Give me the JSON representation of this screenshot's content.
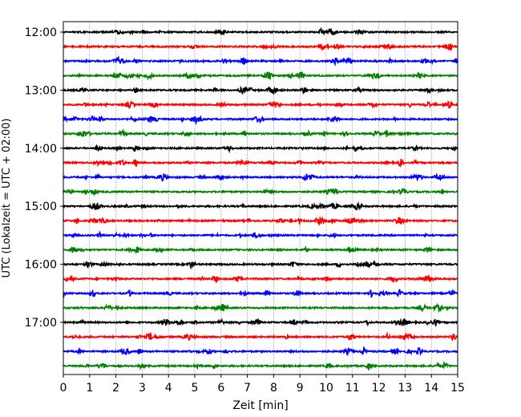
{
  "chart_data": {
    "type": "line",
    "title": "",
    "xlabel": "Zeit  [min]",
    "ylabel": "UTC (Lokalzeit = UTC + 02:00)",
    "xlim": [
      0,
      15
    ],
    "x_ticks": [
      "0",
      "1",
      "2",
      "3",
      "4",
      "5",
      "6",
      "7",
      "8",
      "9",
      "10",
      "11",
      "12",
      "13",
      "14",
      "15"
    ],
    "y_ticks": [
      "12:00",
      "13:00",
      "14:00",
      "15:00",
      "16:00",
      "17:00"
    ],
    "grid": "vertical dotted",
    "trace_interval_minutes": 15,
    "trace_colors": [
      "#000000",
      "#ff0000",
      "#0000ff",
      "#008000"
    ],
    "series": [
      {
        "start": "12:00",
        "color": "#000000"
      },
      {
        "start": "12:15",
        "color": "#ff0000"
      },
      {
        "start": "12:30",
        "color": "#0000ff"
      },
      {
        "start": "12:45",
        "color": "#008000"
      },
      {
        "start": "13:00",
        "color": "#000000"
      },
      {
        "start": "13:15",
        "color": "#ff0000"
      },
      {
        "start": "13:30",
        "color": "#0000ff"
      },
      {
        "start": "13:45",
        "color": "#008000"
      },
      {
        "start": "14:00",
        "color": "#000000"
      },
      {
        "start": "14:15",
        "color": "#ff0000"
      },
      {
        "start": "14:30",
        "color": "#0000ff"
      },
      {
        "start": "14:45",
        "color": "#008000"
      },
      {
        "start": "15:00",
        "color": "#000000"
      },
      {
        "start": "15:15",
        "color": "#ff0000"
      },
      {
        "start": "15:30",
        "color": "#0000ff"
      },
      {
        "start": "15:45",
        "color": "#008000"
      },
      {
        "start": "16:00",
        "color": "#000000"
      },
      {
        "start": "16:15",
        "color": "#ff0000"
      },
      {
        "start": "16:30",
        "color": "#0000ff"
      },
      {
        "start": "16:45",
        "color": "#008000"
      },
      {
        "start": "17:00",
        "color": "#000000"
      },
      {
        "start": "17:15",
        "color": "#ff0000"
      },
      {
        "start": "17:30",
        "color": "#0000ff"
      },
      {
        "start": "17:45",
        "color": "#008000"
      }
    ]
  }
}
